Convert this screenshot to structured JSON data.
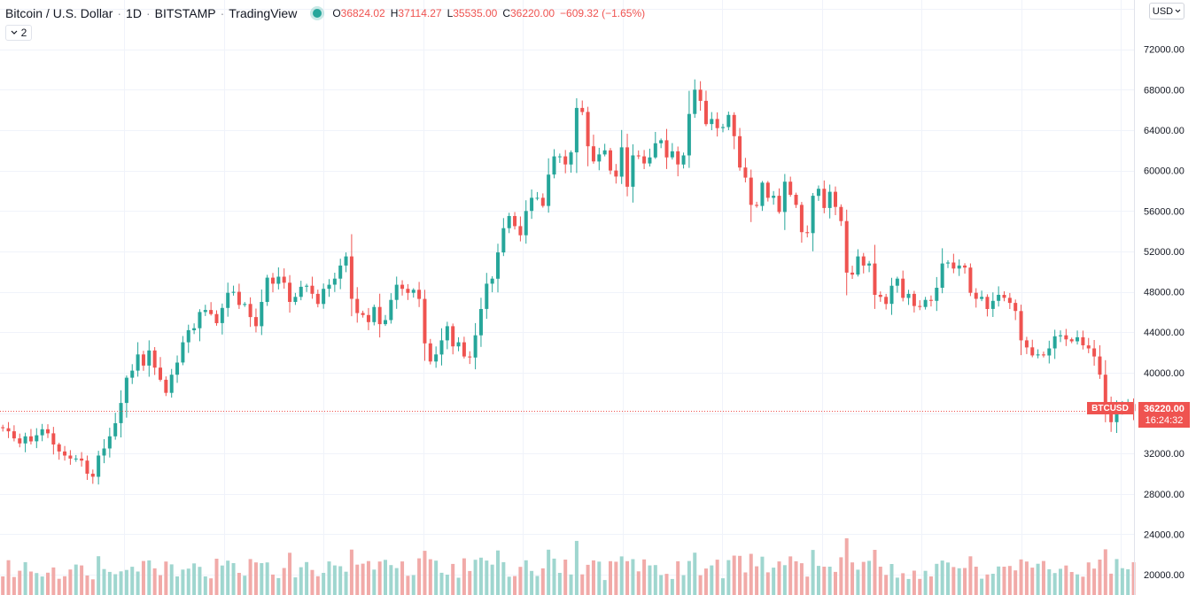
{
  "header": {
    "symbol": "Bitcoin / U.S. Dollar",
    "interval": "1D",
    "exchange": "BITSTAMP",
    "source": "TradingView",
    "ohlc": {
      "open_key": "O",
      "open": "36824.02",
      "high_key": "H",
      "high": "37114.27",
      "low_key": "L",
      "low": "35535.00",
      "close_key": "C",
      "close": "36220.00",
      "change": "−609.32 (−1.65%)"
    },
    "indicators_count": "2",
    "currency": "USD"
  },
  "last_price": {
    "symbol_label": "BTCUSD",
    "price": "36220.00",
    "countdown": "16:24:32"
  },
  "colors": {
    "up": "#26a69a",
    "down": "#ef5350",
    "up_volume": "#9fd6cf",
    "down_volume": "#f1aaa8",
    "grid": "#f0f3fa",
    "axis_text": "#131722"
  },
  "chart_data": {
    "type": "candlestick",
    "price_axis_ticks": [
      "72000.00",
      "68000.00",
      "64000.00",
      "60000.00",
      "56000.00",
      "52000.00",
      "48000.00",
      "44000.00",
      "40000.00",
      "32000.00",
      "28000.00",
      "24000.00",
      "20000.00"
    ],
    "price_range": [
      19400,
      76000
    ],
    "grid": true,
    "volume_overlay": true,
    "last_close": 36220.0,
    "series": [
      {
        "name": "BTCUSD",
        "close": [
          34500,
          34200,
          33500,
          33000,
          33700,
          33200,
          33800,
          34400,
          34000,
          32900,
          32200,
          31800,
          31500,
          31500,
          31300,
          30000,
          29700,
          31800,
          32500,
          33700,
          35000,
          37000,
          39500,
          40200,
          41800,
          40700,
          42200,
          40500,
          39300,
          38000,
          39800,
          41000,
          43000,
          44200,
          44400,
          46000,
          46200,
          45800,
          44900,
          46400,
          47900,
          48000,
          46700,
          46800,
          45500,
          44600,
          47000,
          49400,
          48800,
          49500,
          48900,
          47000,
          47500,
          48500,
          48600,
          47800,
          46800,
          48300,
          48700,
          49300,
          50600,
          51500,
          47300,
          45900,
          45700,
          45000,
          46500,
          44800,
          45200,
          47200,
          48700,
          48300,
          47900,
          48200,
          47300,
          42900,
          41100,
          41800,
          43200,
          44600,
          42600,
          43000,
          41600,
          41500,
          43700,
          46300,
          48800,
          49300,
          51900,
          54300,
          55500,
          54500,
          53600,
          56000,
          57300,
          57300,
          56500,
          59600,
          61400,
          61400,
          60600,
          61800,
          66200,
          65800,
          62400,
          60900,
          61600,
          62000,
          60000,
          59400,
          62300,
          58400,
          61500,
          61400,
          60700,
          61300,
          62700,
          63000,
          61300,
          61900,
          60600,
          61500,
          65600,
          68000,
          66900,
          64600,
          65100,
          64200,
          64300,
          65500,
          63400,
          60300,
          59300,
          56600,
          56500,
          58800,
          57300,
          57500,
          55900,
          58900,
          57600,
          56600,
          53900,
          53800,
          57500,
          58200,
          56300,
          57900,
          56400,
          55000,
          49900,
          49700,
          51500,
          50600,
          50800,
          47700,
          47500,
          46800,
          48600,
          49300,
          47400,
          47800,
          46600,
          46500,
          47200,
          47100,
          48400,
          50800,
          50900,
          50300,
          50600,
          50400,
          47900,
          47300,
          47500,
          46300,
          47100,
          47700,
          47400,
          46900,
          46100,
          43200,
          42500,
          41700,
          41800,
          41700,
          42400,
          43600,
          43700,
          43300,
          43100,
          43500,
          42700,
          42400,
          41600,
          39800,
          36600,
          35100,
          36500,
          36800,
          36900,
          36200
        ]
      }
    ]
  }
}
